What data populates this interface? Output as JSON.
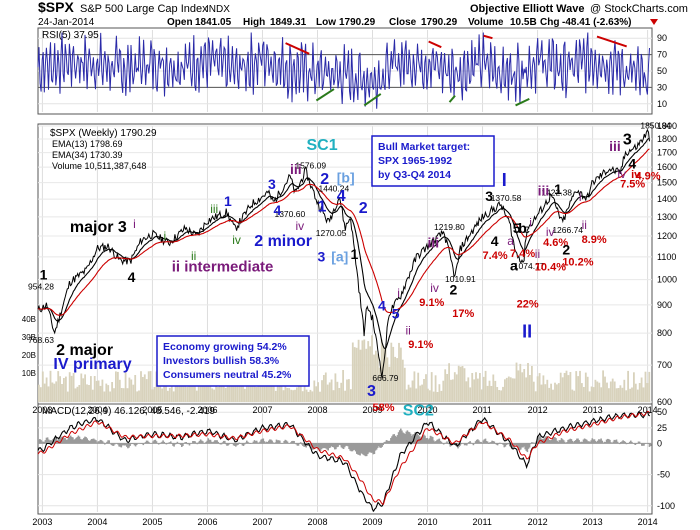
{
  "header": {
    "ticker": "$SPX",
    "index_name": "S&P 500 Large Cap Index",
    "exchange": "INDX",
    "date": "24-Jan-2014",
    "open_label": "Open",
    "open": "1841.05",
    "high_label": "High",
    "high": "1849.31",
    "low_label": "Low",
    "low": "1790.29",
    "close_label": "Close",
    "close": "1790.29",
    "volume_label": "Volume",
    "volume": "10.5B",
    "chg_label": "Chg",
    "chg": "-48.41 (-2.63%)",
    "credit": "Objective Elliott Wave",
    "watermark": "@ StockCharts.com"
  },
  "colors": {
    "price": "#000000",
    "ema13": "#000000",
    "ema34": "#cc0000",
    "rsi": "#2a2aa8",
    "macd": "#000000",
    "signal": "#cc0000",
    "histogram": "#9a9a9a",
    "volume": "#d8d2bc",
    "wave_green": "#2a7a1a",
    "wave_blue": "#1a1acc",
    "wave_cyan": "#20b0c0",
    "wave_purple": "#7a1a7a",
    "pct_red": "#cc0000",
    "down_arrow": "#cc0000"
  },
  "chart_data": [
    {
      "id": "rsi",
      "type": "line",
      "label": "RSI(5) 37.95",
      "ylim": [
        0,
        100
      ],
      "ticks": [
        10,
        30,
        50,
        70,
        90
      ],
      "bands": [
        30,
        70
      ],
      "x": [
        2003.0,
        2003.5,
        2004.0,
        2004.5,
        2005.0,
        2005.5,
        2006.0,
        2006.5,
        2007.0,
        2007.5,
        2008.0,
        2008.5,
        2009.0,
        2009.5,
        2010.0,
        2010.5,
        2011.0,
        2011.5,
        2012.0,
        2012.5,
        2013.0,
        2013.5,
        2014.0
      ],
      "y": [
        55,
        62,
        58,
        52,
        60,
        55,
        63,
        50,
        66,
        52,
        48,
        45,
        38,
        62,
        60,
        48,
        60,
        45,
        63,
        52,
        65,
        55,
        38
      ]
    },
    {
      "id": "price",
      "type": "line",
      "label": "$SPX (Weekly) 1790.29",
      "scale": "log",
      "ylim": [
        600,
        1900
      ],
      "ticks": [
        600,
        700,
        800,
        900,
        1000,
        1100,
        1200,
        1300,
        1400,
        1500,
        1600,
        1700,
        1800,
        1900
      ],
      "x_ticks": [
        "2003",
        "2004",
        "2005",
        "2006",
        "2007",
        "2008",
        "2009",
        "2010",
        "2011",
        "2012",
        "2013",
        "2014"
      ],
      "series": [
        {
          "name": "$SPX (Weekly) 1790.29",
          "x": [
            2002.92,
            2003.08,
            2003.22,
            2003.5,
            2003.8,
            2004.0,
            2004.2,
            2004.4,
            2004.6,
            2004.8,
            2005.0,
            2005.3,
            2005.6,
            2005.8,
            2006.0,
            2006.35,
            2006.5,
            2006.8,
            2007.1,
            2007.2,
            2007.5,
            2007.6,
            2007.78,
            2008.0,
            2008.2,
            2008.4,
            2008.5,
            2008.6,
            2008.85,
            2008.9,
            2009.0,
            2009.18,
            2009.3,
            2009.5,
            2009.8,
            2010.0,
            2010.3,
            2010.5,
            2010.6,
            2010.8,
            2011.0,
            2011.33,
            2011.5,
            2011.6,
            2011.75,
            2011.8,
            2012.0,
            2012.25,
            2012.45,
            2012.7,
            2012.9,
            2013.0,
            2013.3,
            2013.5,
            2013.6,
            2013.8,
            2014.0,
            2014.05
          ],
          "y": [
            880,
            900,
            800,
            990,
            1040,
            1140,
            1150,
            1085,
            1080,
            1180,
            1210,
            1165,
            1240,
            1200,
            1280,
            1325,
            1235,
            1370,
            1440,
            1380,
            1540,
            1430,
            1576,
            1380,
            1270,
            1420,
            1240,
            1300,
            800,
            900,
            850,
            667,
            870,
            930,
            1100,
            1150,
            1220,
            1010,
            1140,
            1220,
            1300,
            1370,
            1260,
            1120,
            1075,
            1230,
            1310,
            1422,
            1267,
            1460,
            1400,
            1500,
            1590,
            1560,
            1700,
            1740,
            1850,
            1790
          ]
        },
        {
          "name": "EMA(13) 1798.69",
          "smoothing": 13
        },
        {
          "name": "EMA(34) 1730.39",
          "smoothing": 34
        }
      ],
      "volume_label": "Volume 10,511,387,648",
      "price_labels": [
        {
          "text": "954.28",
          "x": 2002.92,
          "y": 960
        },
        {
          "text": "768.63",
          "x": 2002.92,
          "y": 768
        },
        {
          "text": "1576.09",
          "x": 2007.78,
          "y": 1590
        },
        {
          "text": "1440.24",
          "x": 2008.2,
          "y": 1445
        },
        {
          "text": "1370.60",
          "x": 2007.4,
          "y": 1300
        },
        {
          "text": "1270.05",
          "x": 2008.15,
          "y": 1200
        },
        {
          "text": "666.79",
          "x": 2009.18,
          "y": 655
        },
        {
          "text": "1219.80",
          "x": 2010.3,
          "y": 1230
        },
        {
          "text": "1010.91",
          "x": 2010.5,
          "y": 990
        },
        {
          "text": "1370.58",
          "x": 2011.33,
          "y": 1390
        },
        {
          "text": "1074.77",
          "x": 2011.75,
          "y": 1045
        },
        {
          "text": "1422.38",
          "x": 2012.25,
          "y": 1420
        },
        {
          "text": "1266.74",
          "x": 2012.45,
          "y": 1215
        },
        {
          "text": "1850.84",
          "x": 2014.05,
          "y": 1880
        }
      ],
      "wave_labels": [
        {
          "text": "1",
          "color": "black",
          "size": 14,
          "x": 2002.95,
          "y": 1000
        },
        {
          "text": "major 3",
          "color": "black",
          "size": 16,
          "x": 2003.5,
          "y": 1220
        },
        {
          "text": "4",
          "color": "black",
          "size": 14,
          "x": 2004.55,
          "y": 990
        },
        {
          "text": "2 major",
          "color": "black",
          "size": 16,
          "x": 2003.25,
          "y": 730
        },
        {
          "text": "IV primary",
          "color": "blue",
          "size": 16,
          "x": 2003.2,
          "y": 688
        },
        {
          "text": "i",
          "color": "purple",
          "size": 12,
          "x": 2004.65,
          "y": 1240
        },
        {
          "text": "ii intermediate",
          "color": "purple",
          "size": 15,
          "x": 2005.35,
          "y": 1035
        },
        {
          "text": "i",
          "color": "green",
          "size": 12,
          "x": 2005.2,
          "y": 1180
        },
        {
          "text": "ii",
          "color": "green",
          "size": 12,
          "x": 2005.7,
          "y": 1085
        },
        {
          "text": "iii",
          "color": "green",
          "size": 12,
          "x": 2006.05,
          "y": 1320
        },
        {
          "text": "iv",
          "color": "green",
          "size": 12,
          "x": 2006.45,
          "y": 1160
        },
        {
          "text": "1",
          "color": "blue",
          "size": 14,
          "x": 2006.3,
          "y": 1360
        },
        {
          "text": "2 minor",
          "color": "blue",
          "size": 16,
          "x": 2006.85,
          "y": 1150
        },
        {
          "text": "3",
          "color": "blue",
          "size": 14,
          "x": 2007.1,
          "y": 1460
        },
        {
          "text": "4",
          "color": "blue",
          "size": 14,
          "x": 2007.2,
          "y": 1310
        },
        {
          "text": "iii",
          "color": "purple",
          "size": 14,
          "x": 2007.5,
          "y": 1555
        },
        {
          "text": "iv",
          "color": "purple",
          "size": 12,
          "x": 2007.6,
          "y": 1230
        },
        {
          "text": "SC1",
          "color": "cyan",
          "size": 16,
          "x": 2007.8,
          "y": 1720
        },
        {
          "text": "2",
          "color": "blue",
          "size": 16,
          "x": 2008.05,
          "y": 1490
        },
        {
          "text": "[b]",
          "color": "lightblue",
          "size": 14,
          "x": 2008.35,
          "y": 1500
        },
        {
          "text": "4",
          "color": "blue",
          "size": 16,
          "x": 2008.35,
          "y": 1390
        },
        {
          "text": "1",
          "color": "blue",
          "size": 16,
          "x": 2008.0,
          "y": 1330
        },
        {
          "text": "2",
          "color": "blue",
          "size": 16,
          "x": 2008.75,
          "y": 1320
        },
        {
          "text": "3",
          "color": "blue",
          "size": 14,
          "x": 2008.0,
          "y": 1080
        },
        {
          "text": "[a]",
          "color": "lightblue",
          "size": 14,
          "x": 2008.25,
          "y": 1080
        },
        {
          "text": "1",
          "color": "black",
          "size": 14,
          "x": 2008.6,
          "y": 1090
        },
        {
          "text": "4",
          "color": "blue",
          "size": 14,
          "x": 2009.1,
          "y": 880
        },
        {
          "text": "5",
          "color": "blue",
          "size": 14,
          "x": 2009.35,
          "y": 850
        },
        {
          "text": "3",
          "color": "blue",
          "size": 16,
          "x": 2008.9,
          "y": 615
        },
        {
          "text": "58%",
          "color": "red",
          "size": 11,
          "x": 2009.0,
          "y": 578
        },
        {
          "text": "SC2",
          "color": "cyan",
          "size": 16,
          "x": 2009.55,
          "y": 567
        },
        {
          "text": "i",
          "color": "purple",
          "size": 12,
          "x": 2009.45,
          "y": 930
        },
        {
          "text": "ii",
          "color": "purple",
          "size": 12,
          "x": 2009.6,
          "y": 795
        },
        {
          "text": "9.1%",
          "color": "red",
          "size": 11,
          "x": 2009.65,
          "y": 752
        },
        {
          "text": "iii",
          "color": "purple",
          "size": 14,
          "x": 2010.0,
          "y": 1145
        },
        {
          "text": "iv",
          "color": "purple",
          "size": 12,
          "x": 2010.05,
          "y": 950
        },
        {
          "text": "9.1%",
          "color": "red",
          "size": 11,
          "x": 2009.85,
          "y": 895
        },
        {
          "text": "2",
          "color": "black",
          "size": 14,
          "x": 2010.4,
          "y": 940
        },
        {
          "text": "17%",
          "color": "red",
          "size": 11,
          "x": 2010.45,
          "y": 855
        },
        {
          "text": "3",
          "color": "black",
          "size": 14,
          "x": 2011.05,
          "y": 1390
        },
        {
          "text": "I",
          "color": "blue",
          "size": 18,
          "x": 2011.35,
          "y": 1480
        },
        {
          "text": "4",
          "color": "black",
          "size": 14,
          "x": 2011.15,
          "y": 1150
        },
        {
          "text": "7.4%",
          "color": "red",
          "size": 11,
          "x": 2011.0,
          "y": 1090
        },
        {
          "text": "5",
          "color": "black",
          "size": 14,
          "x": 2011.55,
          "y": 1215
        },
        {
          "text": "a",
          "color": "purple",
          "size": 12,
          "x": 2011.45,
          "y": 1155
        },
        {
          "text": "7.4%",
          "color": "red",
          "size": 11,
          "x": 2011.5,
          "y": 1100
        },
        {
          "text": "b",
          "color": "black",
          "size": 14,
          "x": 2011.65,
          "y": 1215
        },
        {
          "text": "a",
          "color": "black",
          "size": 14,
          "x": 2011.5,
          "y": 1040
        },
        {
          "text": "c",
          "color": "black",
          "size": 12,
          "x": 2011.75,
          "y": 1215
        },
        {
          "text": "22%",
          "color": "red",
          "size": 11,
          "x": 2011.62,
          "y": 890
        },
        {
          "text": "II",
          "color": "blue",
          "size": 18,
          "x": 2011.72,
          "y": 785
        },
        {
          "text": "i",
          "color": "purple",
          "size": 12,
          "x": 2011.85,
          "y": 1250
        },
        {
          "text": "ii",
          "color": "purple",
          "size": 12,
          "x": 2011.95,
          "y": 1095
        },
        {
          "text": "10.4%",
          "color": "red",
          "size": 11,
          "x": 2011.95,
          "y": 1040
        },
        {
          "text": "iii",
          "color": "purple",
          "size": 14,
          "x": 2012.0,
          "y": 1420
        },
        {
          "text": "1",
          "color": "black",
          "size": 14,
          "x": 2012.3,
          "y": 1430
        },
        {
          "text": "iv",
          "color": "purple",
          "size": 12,
          "x": 2012.15,
          "y": 1200
        },
        {
          "text": "4.6%",
          "color": "red",
          "size": 11,
          "x": 2012.1,
          "y": 1150
        },
        {
          "text": "2",
          "color": "black",
          "size": 14,
          "x": 2012.45,
          "y": 1110
        },
        {
          "text": "10.2%",
          "color": "red",
          "size": 11,
          "x": 2012.45,
          "y": 1060
        },
        {
          "text": "i",
          "color": "purple",
          "size": 12,
          "x": 2012.75,
          "y": 1390
        },
        {
          "text": "ii",
          "color": "purple",
          "size": 12,
          "x": 2012.8,
          "y": 1235
        },
        {
          "text": "8.9%",
          "color": "red",
          "size": 11,
          "x": 2012.8,
          "y": 1165
        },
        {
          "text": "iii",
          "color": "purple",
          "size": 14,
          "x": 2013.3,
          "y": 1710
        },
        {
          "text": "3",
          "color": "black",
          "size": 16,
          "x": 2013.55,
          "y": 1760
        },
        {
          "text": "iv",
          "color": "purple",
          "size": 12,
          "x": 2013.45,
          "y": 1530
        },
        {
          "text": "7.5%",
          "color": "red",
          "size": 11,
          "x": 2013.5,
          "y": 1470
        },
        {
          "text": "4",
          "color": "black",
          "size": 14,
          "x": 2013.65,
          "y": 1590
        },
        {
          "text": "4.9%",
          "color": "red",
          "size": 11,
          "x": 2013.78,
          "y": 1520
        },
        {
          "text": "iv",
          "color": "red",
          "size": 11,
          "x": 2013.7,
          "y": 1530
        }
      ],
      "boxes": [
        {
          "lines": [
            "Bull Market target:",
            "SPX 1965-1992",
            "by Q3-Q4 2014"
          ]
        },
        {
          "lines": [
            "Economy growing 54.2%",
            "Investors bullish 58.3%",
            "Consumers neutral 45.2%"
          ]
        }
      ]
    },
    {
      "id": "macd",
      "type": "line",
      "label": "MACD(12,26,9) 46.126, 48.546, -2.419",
      "ylim": [
        -110,
        60
      ],
      "ticks": [
        -100,
        -50,
        0,
        25,
        50
      ],
      "series": [
        {
          "name": "MACD",
          "x": [
            2003.0,
            2003.5,
            2004.0,
            2004.5,
            2005.0,
            2005.5,
            2006.0,
            2006.5,
            2007.0,
            2007.5,
            2008.0,
            2008.5,
            2008.8,
            2009.0,
            2009.2,
            2009.5,
            2010.0,
            2010.5,
            2011.0,
            2011.5,
            2011.8,
            2012.0,
            2012.5,
            2013.0,
            2013.5,
            2014.0
          ],
          "y": [
            -10,
            25,
            40,
            5,
            15,
            10,
            20,
            5,
            25,
            30,
            -20,
            -30,
            -80,
            -105,
            -95,
            -20,
            35,
            -5,
            40,
            0,
            -35,
            10,
            25,
            35,
            45,
            46
          ]
        },
        {
          "name": "Signal",
          "x": [
            2003.0,
            2003.5,
            2004.0,
            2004.5,
            2005.0,
            2005.5,
            2006.0,
            2006.5,
            2007.0,
            2007.5,
            2008.0,
            2008.5,
            2008.8,
            2009.0,
            2009.2,
            2009.5,
            2010.0,
            2010.5,
            2011.0,
            2011.5,
            2011.8,
            2012.0,
            2012.5,
            2013.0,
            2013.5,
            2014.0
          ],
          "y": [
            -15,
            15,
            35,
            10,
            12,
            12,
            15,
            8,
            20,
            28,
            -10,
            -25,
            -60,
            -90,
            -95,
            -40,
            25,
            0,
            35,
            5,
            -25,
            0,
            20,
            30,
            42,
            48.5
          ]
        }
      ],
      "x_ticks": [
        "2003",
        "2004",
        "2005",
        "2006",
        "2007",
        "2008",
        "2009",
        "2010",
        "2011",
        "2012",
        "2013",
        "2014"
      ]
    }
  ]
}
